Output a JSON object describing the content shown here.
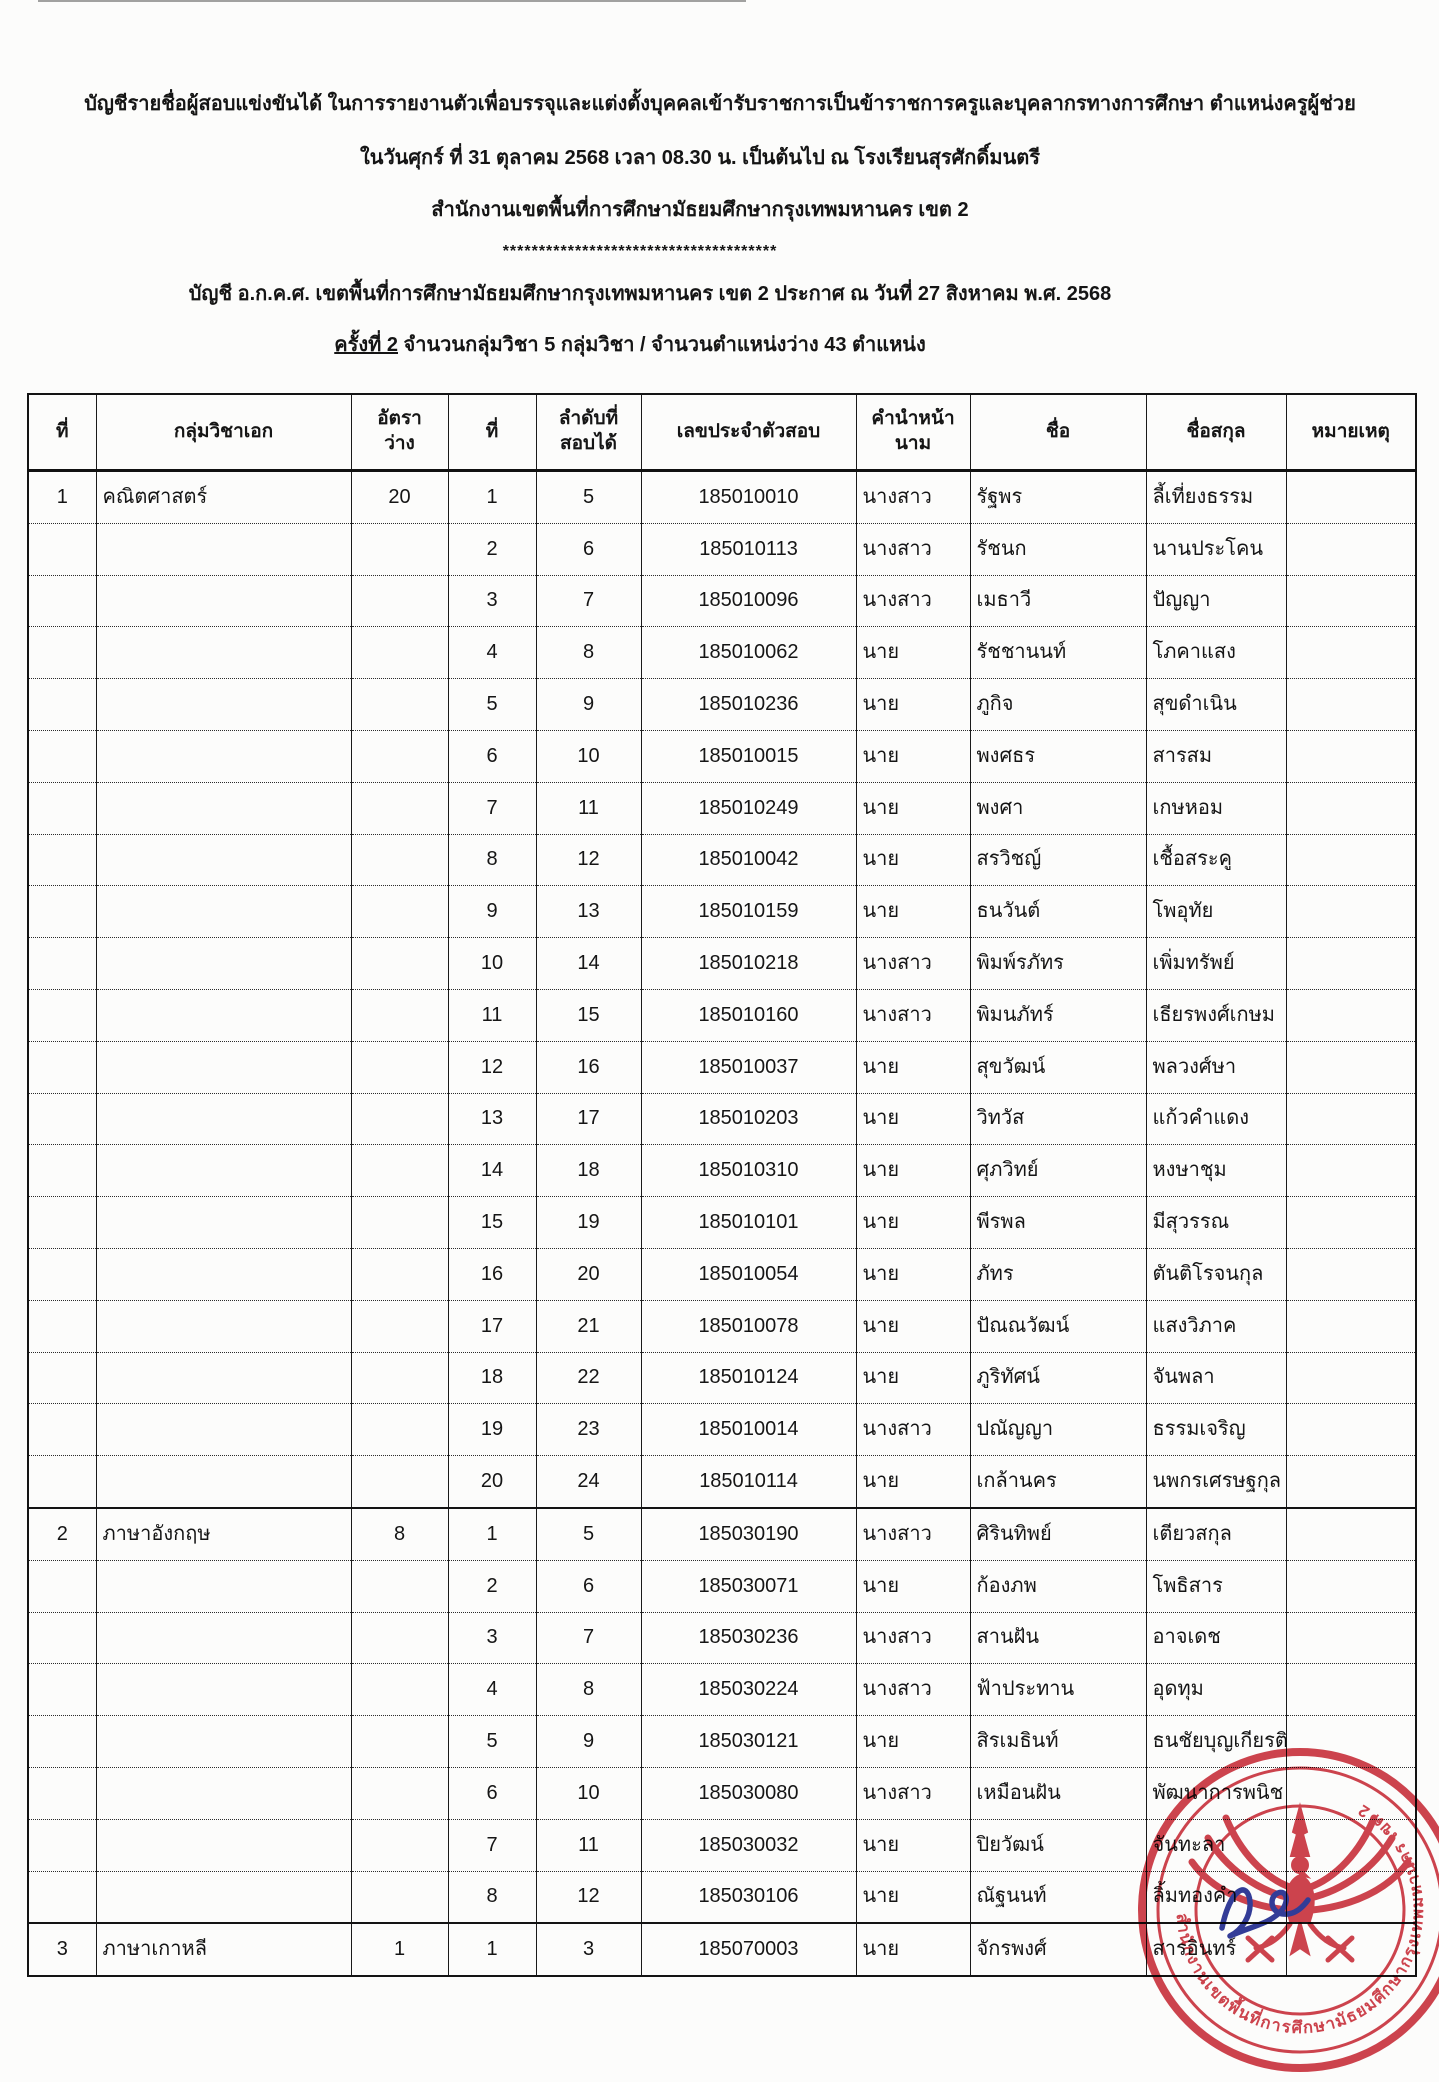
{
  "document": {
    "title_line1": "บัญชีรายชื่อผู้สอบแข่งขันได้ ในการรายงานตัวเพื่อบรรจุและแต่งตั้งบุคคลเข้ารับราชการเป็นข้าราชการครูและบุคลากรทางการศึกษา ตำแหน่งครูผู้ช่วย",
    "title_line2": "ในวันศุกร์ ที่ 31 ตุลาคม 2568 เวลา 08.30 น. เป็นต้นไป ณ โรงเรียนสุรศักดิ์มนตรี",
    "title_line3": "สำนักงานเขตพื้นที่การศึกษามัธยมศึกษากรุงเทพมหานคร เขต 2",
    "separator": "**************************************",
    "title_line4": "บัญชี อ.ก.ค.ศ. เขตพื้นที่การศึกษามัธยมศึกษากรุงเทพมหานคร เขต 2 ประกาศ ณ วันที่ 27 สิงหาคม พ.ศ. 2568",
    "title_line5_underlined": "ครั้งที่ 2",
    "title_line5_rest": " จำนวนกลุ่มวิชา 5 กลุ่มวิชา / จำนวนตำแหน่งว่าง 43 ตำแหน่ง"
  },
  "table": {
    "headers": [
      "ที่",
      "กลุ่มวิชาเอก",
      "อัตรา\nว่าง",
      "ที่",
      "ลำดับที่\nสอบได้",
      "เลขประจำตัวสอบ",
      "คำนำหน้า\nนาม",
      "ชื่อ",
      "ชื่อสกุล",
      "หมายเหตุ"
    ],
    "sections": [
      {
        "no": "1",
        "subject_group": "คณิตศาสตร์",
        "vacancy": "20",
        "rows": [
          {
            "no": "1",
            "rank": "5",
            "exam_id": "185010010",
            "title": "นางสาว",
            "first_name": "รัฐพร",
            "last_name": "ลี้เที่ยงธรรม",
            "remark": ""
          },
          {
            "no": "2",
            "rank": "6",
            "exam_id": "185010113",
            "title": "นางสาว",
            "first_name": "รัชนก",
            "last_name": "นานประโคน",
            "remark": ""
          },
          {
            "no": "3",
            "rank": "7",
            "exam_id": "185010096",
            "title": "นางสาว",
            "first_name": "เมธาวี",
            "last_name": "ปัญญา",
            "remark": ""
          },
          {
            "no": "4",
            "rank": "8",
            "exam_id": "185010062",
            "title": "นาย",
            "first_name": "รัชชานนท์",
            "last_name": "โภคาแสง",
            "remark": ""
          },
          {
            "no": "5",
            "rank": "9",
            "exam_id": "185010236",
            "title": "นาย",
            "first_name": "ภูกิจ",
            "last_name": "สุขดำเนิน",
            "remark": ""
          },
          {
            "no": "6",
            "rank": "10",
            "exam_id": "185010015",
            "title": "นาย",
            "first_name": "พงศธร",
            "last_name": "สารสม",
            "remark": ""
          },
          {
            "no": "7",
            "rank": "11",
            "exam_id": "185010249",
            "title": "นาย",
            "first_name": "พงศา",
            "last_name": "เกษหอม",
            "remark": ""
          },
          {
            "no": "8",
            "rank": "12",
            "exam_id": "185010042",
            "title": "นาย",
            "first_name": "สรวิชญ์",
            "last_name": "เชื้อสระคู",
            "remark": ""
          },
          {
            "no": "9",
            "rank": "13",
            "exam_id": "185010159",
            "title": "นาย",
            "first_name": "ธนวันต์",
            "last_name": "โพอุทัย",
            "remark": ""
          },
          {
            "no": "10",
            "rank": "14",
            "exam_id": "185010218",
            "title": "นางสาว",
            "first_name": "พิมพ์รภัทร",
            "last_name": "เพิ่มทรัพย์",
            "remark": ""
          },
          {
            "no": "11",
            "rank": "15",
            "exam_id": "185010160",
            "title": "นางสาว",
            "first_name": "พิมนภัทร์",
            "last_name": "เธียรพงศ์เกษม",
            "remark": ""
          },
          {
            "no": "12",
            "rank": "16",
            "exam_id": "185010037",
            "title": "นาย",
            "first_name": "สุขวัฒน์",
            "last_name": "พลวงศ์ษา",
            "remark": ""
          },
          {
            "no": "13",
            "rank": "17",
            "exam_id": "185010203",
            "title": "นาย",
            "first_name": "วิทวัส",
            "last_name": "แก้วคำแดง",
            "remark": ""
          },
          {
            "no": "14",
            "rank": "18",
            "exam_id": "185010310",
            "title": "นาย",
            "first_name": "ศุภวิทย์",
            "last_name": "หงษาชุม",
            "remark": ""
          },
          {
            "no": "15",
            "rank": "19",
            "exam_id": "185010101",
            "title": "นาย",
            "first_name": "พีรพล",
            "last_name": "มีสุวรรณ",
            "remark": ""
          },
          {
            "no": "16",
            "rank": "20",
            "exam_id": "185010054",
            "title": "นาย",
            "first_name": "ภัทร",
            "last_name": "ตันติโรจนกุล",
            "remark": ""
          },
          {
            "no": "17",
            "rank": "21",
            "exam_id": "185010078",
            "title": "นาย",
            "first_name": "ปัณณวัฒน์",
            "last_name": "แสงวิภาค",
            "remark": ""
          },
          {
            "no": "18",
            "rank": "22",
            "exam_id": "185010124",
            "title": "นาย",
            "first_name": "ภูริทัศน์",
            "last_name": "จันพลา",
            "remark": ""
          },
          {
            "no": "19",
            "rank": "23",
            "exam_id": "185010014",
            "title": "นางสาว",
            "first_name": "ปณัญญา",
            "last_name": "ธรรมเจริญ",
            "remark": ""
          },
          {
            "no": "20",
            "rank": "24",
            "exam_id": "185010114",
            "title": "นาย",
            "first_name": "เกล้านคร",
            "last_name": "นพกรเศรษฐกุล",
            "remark": ""
          }
        ]
      },
      {
        "no": "2",
        "subject_group": "ภาษาอังกฤษ",
        "vacancy": "8",
        "rows": [
          {
            "no": "1",
            "rank": "5",
            "exam_id": "185030190",
            "title": "นางสาว",
            "first_name": "ศิรินทิพย์",
            "last_name": "เตียวสกุล",
            "remark": ""
          },
          {
            "no": "2",
            "rank": "6",
            "exam_id": "185030071",
            "title": "นาย",
            "first_name": "ก้องภพ",
            "last_name": "โพธิสาร",
            "remark": ""
          },
          {
            "no": "3",
            "rank": "7",
            "exam_id": "185030236",
            "title": "นางสาว",
            "first_name": "สานฝัน",
            "last_name": "อาจเดช",
            "remark": ""
          },
          {
            "no": "4",
            "rank": "8",
            "exam_id": "185030224",
            "title": "นางสาว",
            "first_name": "ฟ้าประทาน",
            "last_name": "อุดทุม",
            "remark": ""
          },
          {
            "no": "5",
            "rank": "9",
            "exam_id": "185030121",
            "title": "นาย",
            "first_name": "สิรเมธินท์",
            "last_name": "ธนชัยบุญเกียรติ",
            "remark": ""
          },
          {
            "no": "6",
            "rank": "10",
            "exam_id": "185030080",
            "title": "นางสาว",
            "first_name": "เหมือนฝัน",
            "last_name": "พัฒนาการพนิช",
            "remark": ""
          },
          {
            "no": "7",
            "rank": "11",
            "exam_id": "185030032",
            "title": "นาย",
            "first_name": "ปิยวัฒน์",
            "last_name": "จันทะลา",
            "remark": ""
          },
          {
            "no": "8",
            "rank": "12",
            "exam_id": "185030106",
            "title": "นาย",
            "first_name": "ณัฐนนท์",
            "last_name": "ลิ้มทองคำ",
            "remark": ""
          }
        ]
      },
      {
        "no": "3",
        "subject_group": "ภาษาเกาหลี",
        "vacancy": "1",
        "rows": [
          {
            "no": "1",
            "rank": "3",
            "exam_id": "185070003",
            "title": "นาย",
            "first_name": "จักรพงศ์",
            "last_name": "สารอินทร์",
            "remark": ""
          }
        ]
      }
    ]
  },
  "stamp": {
    "circle_text": "สำนักงานเขตพื้นที่การศึกษามัธยมศึกษากรุงเทพมหานคร เขต 2",
    "color": "#cc3640",
    "signature_color": "#232d91"
  }
}
